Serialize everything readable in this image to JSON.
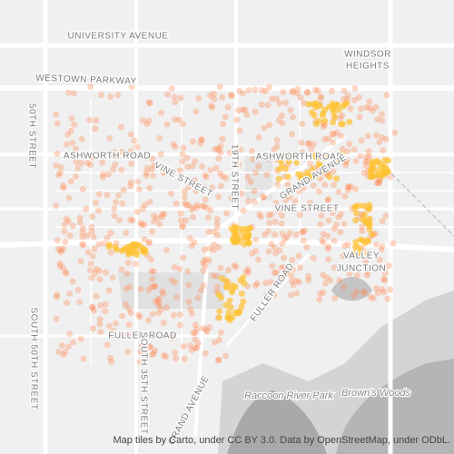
{
  "labels": [
    {
      "text": "UNIVERSITY AVENUE"
    },
    {
      "text": "WINDSOR"
    },
    {
      "text": "HEIGHTS"
    },
    {
      "text": "WESTOWN PARKWAY"
    },
    {
      "text": "50TH STREET"
    },
    {
      "text": "ASHWORTH ROAD"
    },
    {
      "text": "VINE STREET"
    },
    {
      "text": "19TH STREET"
    },
    {
      "text": "ASHWORTH ROAD"
    },
    {
      "text": "GRAND AVENUE"
    },
    {
      "text": "VINE STREET"
    },
    {
      "text": "VALLEY"
    },
    {
      "text": "JUNCTION"
    },
    {
      "text": "FULLER ROAD"
    },
    {
      "text": "SOUTH 50TH STREET"
    },
    {
      "text": "FULLER ROAD"
    },
    {
      "text": "SOUTH 35TH STREET"
    },
    {
      "text": "GRAND AVENUE"
    },
    {
      "text": "Raccoon River Park"
    },
    {
      "text": "Brown's Woods"
    }
  ],
  "attribution": "Map tiles by Carto, under CC BY 3.0. Data by OpenStreetMap, under ODbL."
}
